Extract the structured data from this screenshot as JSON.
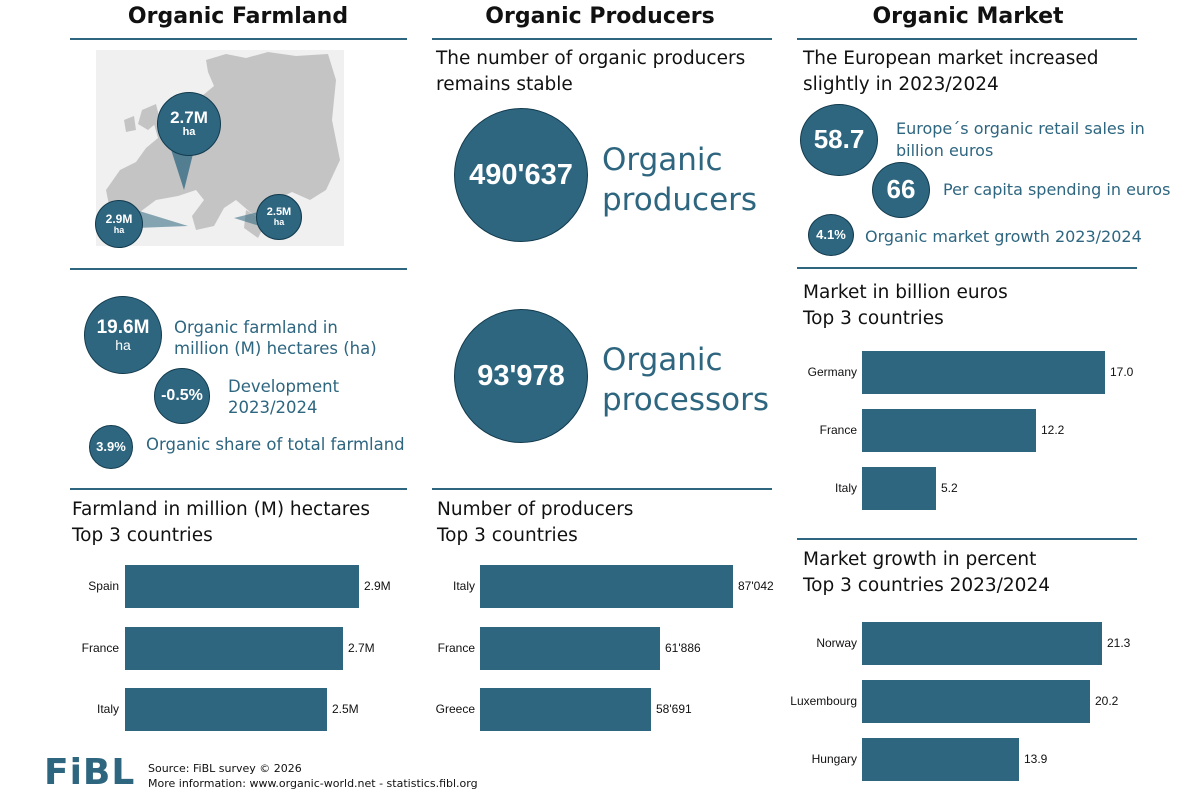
{
  "columns": {
    "farmland": "Organic Farmland",
    "producers": "Organic Producers",
    "market": "Organic Market"
  },
  "map_markers": [
    {
      "value": "2.7M",
      "unit": "ha"
    },
    {
      "value": "2.9M",
      "unit": "ha"
    },
    {
      "value": "2.5M",
      "unit": "ha"
    }
  ],
  "farmland_stats": {
    "area": {
      "value": "19.6M",
      "unit": "ha",
      "label_line1": "Organic farmland in",
      "label_line2": "million (M) hectares (ha)"
    },
    "development": {
      "value": "-0.5%",
      "label_line1": "Development",
      "label_line2": "2023/2024"
    },
    "share": {
      "value": "3.9%",
      "label": "Organic share of total farmland"
    }
  },
  "producers_section": {
    "heading_line1": "The number of organic producers",
    "heading_line2": "remains stable",
    "producers": {
      "value": "490'637",
      "label_line1": "Organic",
      "label_line2": "producers"
    },
    "processors": {
      "value": "93'978",
      "label_line1": "Organic",
      "label_line2": "processors"
    }
  },
  "market_section": {
    "heading_line1": "The European market increased",
    "heading_line2": "slightly in 2023/2024",
    "retail": {
      "value": "58.7",
      "label_line1": "Europe´s organic retail sales in",
      "label_line2": "billion euros"
    },
    "per_capita": {
      "value": "66",
      "label": "Per capita spending in euros"
    },
    "growth": {
      "value": "4.1%",
      "label": "Organic market growth 2023/2024"
    }
  },
  "footer": {
    "source": "Source: FiBL survey © 2026",
    "more": "More information: www.organic-world.net - statistics.fibl.org",
    "logo": "FiBL"
  },
  "colors": {
    "accent": "#2e6680",
    "text": "#111111"
  },
  "chart_data": [
    {
      "type": "bar",
      "orientation": "horizontal",
      "title_line1": "Farmland in million (M) hectares",
      "title_line2": "Top 3 countries",
      "categories": [
        "Spain",
        "France",
        "Italy"
      ],
      "values": [
        2.9,
        2.7,
        2.5
      ],
      "value_labels": [
        "2.9M",
        "2.7M",
        "2.5M"
      ]
    },
    {
      "type": "bar",
      "orientation": "horizontal",
      "title_line1": "Number of producers",
      "title_line2": "Top 3 countries",
      "categories": [
        "Italy",
        "France",
        "Greece"
      ],
      "values": [
        87042,
        61886,
        58691
      ],
      "value_labels": [
        "87'042",
        "61'886",
        "58'691"
      ]
    },
    {
      "type": "bar",
      "orientation": "horizontal",
      "title_line1": "Market in billion euros",
      "title_line2": "Top 3 countries",
      "categories": [
        "Germany",
        "France",
        "Italy"
      ],
      "values": [
        17.0,
        12.2,
        5.2
      ],
      "value_labels": [
        "17.0",
        "12.2",
        "5.2"
      ]
    },
    {
      "type": "bar",
      "orientation": "horizontal",
      "title_line1": "Market growth in percent",
      "title_line2": "Top 3 countries 2023/2024",
      "categories": [
        "Norway",
        "Luxembourg",
        "Hungary"
      ],
      "values": [
        21.3,
        20.2,
        13.9
      ],
      "value_labels": [
        "21.3",
        "20.2",
        "13.9"
      ]
    }
  ]
}
